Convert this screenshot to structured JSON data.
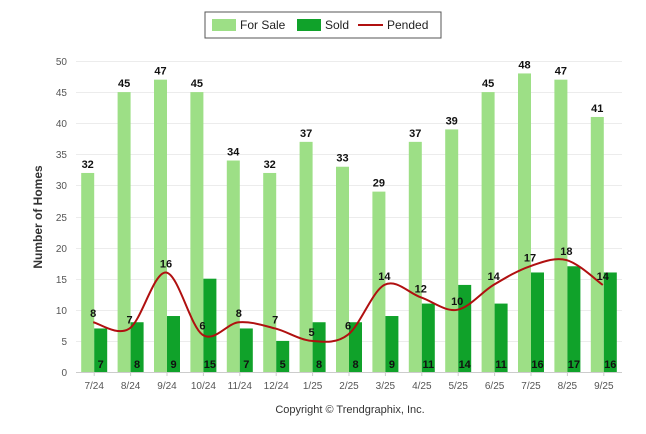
{
  "chart_data": {
    "type": "bar",
    "categories": [
      "7/24",
      "8/24",
      "9/24",
      "10/24",
      "11/24",
      "12/24",
      "1/25",
      "2/25",
      "3/25",
      "4/25",
      "5/25",
      "6/25",
      "7/25",
      "8/25",
      "9/25"
    ],
    "series": [
      {
        "name": "For Sale",
        "kind": "bar",
        "color": "#9ddf86",
        "values": [
          32,
          45,
          47,
          45,
          34,
          32,
          37,
          33,
          29,
          37,
          39,
          45,
          48,
          47,
          41
        ]
      },
      {
        "name": "Sold",
        "kind": "bar",
        "color": "#10a22a",
        "values": [
          7,
          8,
          9,
          15,
          7,
          5,
          8,
          8,
          9,
          11,
          14,
          11,
          16,
          17,
          16
        ]
      },
      {
        "name": "Pended",
        "kind": "line",
        "color": "#b01010",
        "values": [
          8,
          7,
          16,
          6,
          8,
          7,
          5,
          6,
          14,
          12,
          10,
          14,
          17,
          18,
          14
        ]
      }
    ],
    "ylabel": "Number of Homes",
    "ylim": [
      0,
      50
    ],
    "yticks": [
      0,
      5,
      10,
      15,
      20,
      25,
      30,
      35,
      40,
      45,
      50
    ],
    "legend": "top-center",
    "grid": true,
    "footer": "Copyright © Trendgraphix, Inc."
  }
}
